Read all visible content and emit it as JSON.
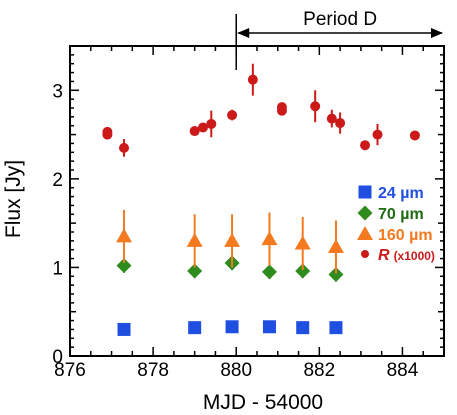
{
  "chart_data": {
    "type": "scatter",
    "xlabel": "MJD - 54000",
    "ylabel": "Flux [Jy]",
    "xlim": [
      876,
      885
    ],
    "ylim": [
      0,
      3.5
    ],
    "x_ticks": [
      "876",
      "878",
      "880",
      "882",
      "884"
    ],
    "y_ticks": [
      "0",
      "1",
      "2",
      "3"
    ],
    "annotation": {
      "text": "Period D",
      "x_start": 880.0,
      "x_end": 885.0
    },
    "legend_position": "right",
    "series": [
      {
        "name": "24 µm",
        "legend_label": "24 µm",
        "marker": "square",
        "color": "#1f4fe0",
        "points": [
          {
            "x": 877.3,
            "y": 0.3,
            "err": 0
          },
          {
            "x": 879.0,
            "y": 0.32,
            "err": 0
          },
          {
            "x": 879.9,
            "y": 0.33,
            "err": 0
          },
          {
            "x": 880.8,
            "y": 0.33,
            "err": 0
          },
          {
            "x": 881.6,
            "y": 0.32,
            "err": 0
          },
          {
            "x": 882.4,
            "y": 0.32,
            "err": 0
          }
        ]
      },
      {
        "name": "70 µm",
        "legend_label": "70 µm",
        "marker": "diamond",
        "color": "#2e8b1e",
        "text_color": "#1e6b12",
        "points": [
          {
            "x": 877.3,
            "y": 1.02,
            "err": 0.08
          },
          {
            "x": 879.0,
            "y": 0.96,
            "err": 0.08
          },
          {
            "x": 879.9,
            "y": 1.05,
            "err": 0.08
          },
          {
            "x": 880.8,
            "y": 0.95,
            "err": 0.08
          },
          {
            "x": 881.6,
            "y": 0.96,
            "err": 0.08
          },
          {
            "x": 882.4,
            "y": 0.92,
            "err": 0.08
          }
        ]
      },
      {
        "name": "160 µm",
        "legend_label": "160 µm",
        "marker": "triangle",
        "color": "#f47a20",
        "points": [
          {
            "x": 877.3,
            "y": 1.35,
            "err": 0.3
          },
          {
            "x": 879.0,
            "y": 1.3,
            "err": 0.3
          },
          {
            "x": 879.9,
            "y": 1.3,
            "err": 0.3
          },
          {
            "x": 880.8,
            "y": 1.32,
            "err": 0.3
          },
          {
            "x": 881.6,
            "y": 1.27,
            "err": 0.3
          },
          {
            "x": 882.4,
            "y": 1.23,
            "err": 0.3
          }
        ]
      },
      {
        "name": "R (x1000)",
        "legend_label_main": "R",
        "legend_label_sub": "(x1000)",
        "marker": "circle",
        "color": "#cc1a1a",
        "points": [
          {
            "x": 876.9,
            "y": 2.5,
            "err": 0.04
          },
          {
            "x": 876.9,
            "y": 2.53,
            "err": 0.04
          },
          {
            "x": 877.3,
            "y": 2.35,
            "err": 0.1
          },
          {
            "x": 879.0,
            "y": 2.54,
            "err": 0.04
          },
          {
            "x": 879.2,
            "y": 2.58,
            "err": 0.04
          },
          {
            "x": 879.4,
            "y": 2.62,
            "err": 0.15
          },
          {
            "x": 879.9,
            "y": 2.72,
            "err": 0.06
          },
          {
            "x": 880.4,
            "y": 3.12,
            "err": 0.18
          },
          {
            "x": 881.1,
            "y": 2.77,
            "err": 0.04
          },
          {
            "x": 881.1,
            "y": 2.81,
            "err": 0.04
          },
          {
            "x": 881.9,
            "y": 2.82,
            "err": 0.18
          },
          {
            "x": 882.3,
            "y": 2.68,
            "err": 0.1
          },
          {
            "x": 882.5,
            "y": 2.63,
            "err": 0.12
          },
          {
            "x": 883.1,
            "y": 2.38,
            "err": 0.04
          },
          {
            "x": 883.4,
            "y": 2.5,
            "err": 0.12
          },
          {
            "x": 884.3,
            "y": 2.49,
            "err": 0.04
          }
        ]
      }
    ]
  }
}
